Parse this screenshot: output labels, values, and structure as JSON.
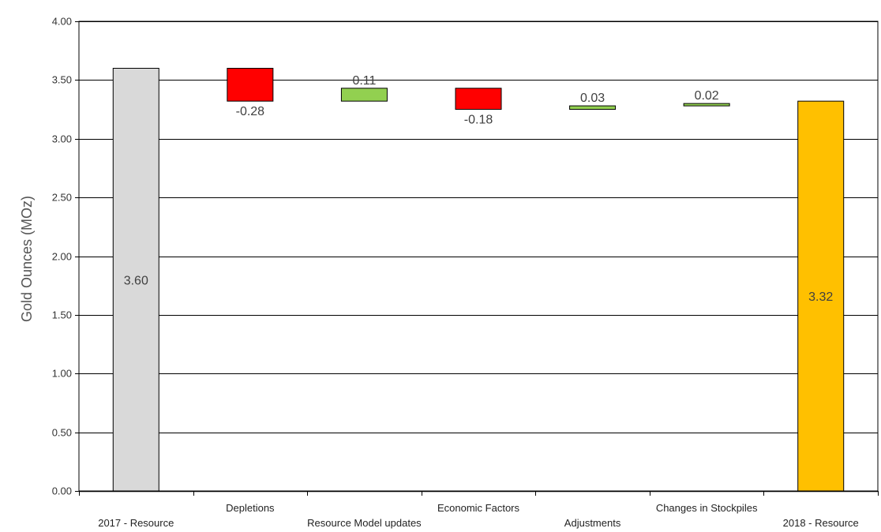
{
  "chart_data": {
    "type": "bar",
    "subtype": "waterfall",
    "title": "",
    "xlabel": "",
    "ylabel": "Gold Ounces (MOz)",
    "ylim": [
      0,
      4
    ],
    "yticks": [
      "0.00",
      "0.50",
      "1.00",
      "1.50",
      "2.00",
      "2.50",
      "3.00",
      "3.50",
      "4.00"
    ],
    "grid": true,
    "legend": "none",
    "categories": [
      "2017 - Resource",
      "Depletions",
      "Resource Model updates",
      "Economic Factors",
      "Adjustments",
      "Changes in Stockpiles",
      "2018 - Resource"
    ],
    "bars": [
      {
        "kind": "total",
        "start": 0,
        "end": 3.6,
        "label": "3.60",
        "color": "#d9d9d9"
      },
      {
        "kind": "delta",
        "start": 3.6,
        "end": 3.32,
        "label": "-0.28",
        "color": "#ff0000"
      },
      {
        "kind": "delta",
        "start": 3.32,
        "end": 3.43,
        "label": "0.11",
        "color": "#92d050"
      },
      {
        "kind": "delta",
        "start": 3.43,
        "end": 3.25,
        "label": "-0.18",
        "color": "#ff0000"
      },
      {
        "kind": "delta",
        "start": 3.25,
        "end": 3.28,
        "label": "0.03",
        "color": "#92d050"
      },
      {
        "kind": "delta",
        "start": 3.28,
        "end": 3.3,
        "label": "0.02",
        "color": "#92d050"
      },
      {
        "kind": "total",
        "start": 0,
        "end": 3.32,
        "label": "3.32",
        "color": "#ffc000"
      }
    ]
  }
}
